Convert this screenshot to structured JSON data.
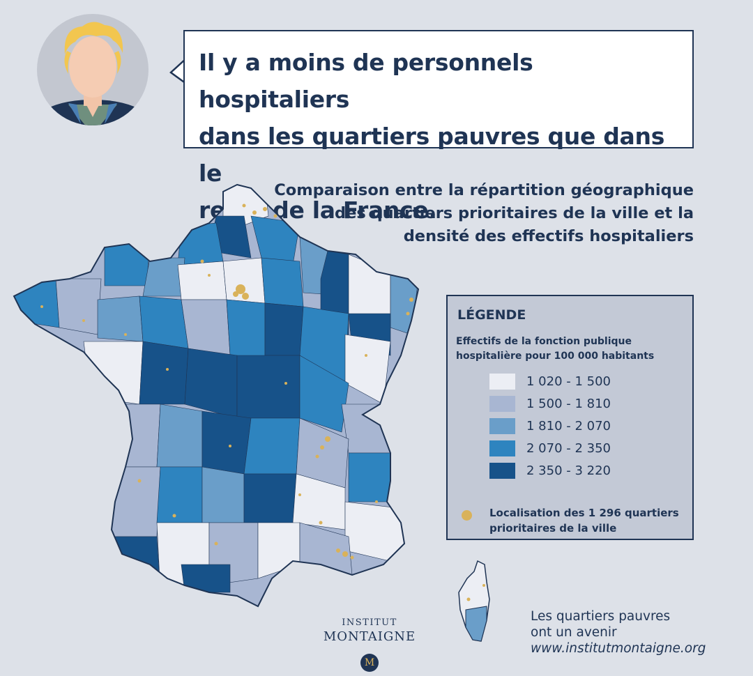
{
  "quote": "Il y a moins de personnels hospitaliers\ndans les quartiers pauvres que dans le\nreste de la France.",
  "subtitle": "Comparaison entre la répartition géographique\ndes quartiers prioritaires de la ville et la\ndensité des effectifs hospitaliers",
  "legend": {
    "title": "LÉGENDE",
    "subtitle": "Effectifs de la fonction publique\nhospitalière pour 100 000 habitants",
    "classes": [
      {
        "label": "1 020 - 1 500",
        "color": "#eceef4"
      },
      {
        "label": "1 500 - 1 810",
        "color": "#a8b6d2"
      },
      {
        "label": "1 810 - 2 070",
        "color": "#6a9ec9"
      },
      {
        "label": "2 070 - 2 350",
        "color": "#2e84bf"
      },
      {
        "label": "2 350 - 3 220",
        "color": "#175289"
      }
    ],
    "dot_label": "Localisation des 1 296 quartiers\nprioritaires de la ville",
    "dot_color": "#d9b25a"
  },
  "logo": {
    "line1": "INSTITUT",
    "line2": "MONTAIGNE",
    "emblem": "M"
  },
  "footer": {
    "line1": "Les quartiers pauvres",
    "line2": "ont un avenir",
    "url": "www.institutmontaigne.org"
  },
  "colors": {
    "navy": "#1f3454",
    "background": "#dde1e8"
  }
}
